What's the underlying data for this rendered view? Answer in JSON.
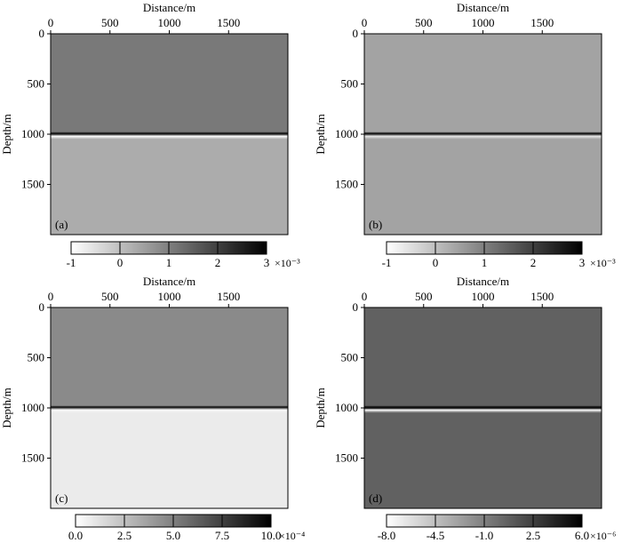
{
  "chart_data": [
    {
      "type": "heatmap",
      "panel_label": "(a)",
      "xlabel": "Distance/m",
      "ylabel": "Depth/m",
      "xlim": [
        0,
        2000
      ],
      "ylim": [
        0,
        2000
      ],
      "xticks": [
        "0",
        "500",
        "1000",
        "1500"
      ],
      "yticks": [
        "0",
        "500",
        "1000",
        "1500"
      ],
      "reflector_depth": 1000,
      "colorbar": {
        "ticks": [
          "-1",
          "0",
          "1",
          "2",
          "3"
        ],
        "values": [
          -1,
          0,
          1,
          2,
          3
        ],
        "range": [
          -1,
          3
        ],
        "exponent": "×10⁻³"
      },
      "field": {
        "upper_value": 1.1,
        "lower_value": 0.3,
        "peak_value": 3.0,
        "trough_value": -1.0
      }
    },
    {
      "type": "heatmap",
      "panel_label": "(b)",
      "xlabel": "Distance/m",
      "ylabel": "Depth/m",
      "xlim": [
        0,
        2000
      ],
      "ylim": [
        0,
        2000
      ],
      "xticks": [
        "0",
        "500",
        "1000",
        "1500"
      ],
      "yticks": [
        "0",
        "500",
        "1000",
        "1500"
      ],
      "reflector_depth": 1000,
      "colorbar": {
        "ticks": [
          "-1",
          "0",
          "1",
          "2",
          "3"
        ],
        "values": [
          -1,
          0,
          1,
          2,
          3
        ],
        "range": [
          -1,
          3
        ],
        "exponent": "×10⁻³"
      },
      "field": {
        "upper_value": 0.45,
        "lower_value": 0.45,
        "peak_value": 3.0,
        "trough_value": -0.6
      }
    },
    {
      "type": "heatmap",
      "panel_label": "(c)",
      "xlabel": "Distance/m",
      "ylabel": "Depth/m",
      "xlim": [
        0,
        2000
      ],
      "ylim": [
        0,
        2000
      ],
      "xticks": [
        "0",
        "500",
        "1000",
        "1500"
      ],
      "yticks": [
        "0",
        "500",
        "1000",
        "1500"
      ],
      "reflector_depth": 1000,
      "colorbar": {
        "ticks": [
          "0.0",
          "2.5",
          "5.0",
          "7.5",
          "10.0"
        ],
        "values": [
          0,
          2.5,
          5,
          7.5,
          10
        ],
        "range": [
          0,
          10
        ],
        "exponent": "×10⁻⁴"
      },
      "field": {
        "upper_value": 4.6,
        "lower_value": 0.8,
        "peak_value": 10.0,
        "trough_value": 0.2
      }
    },
    {
      "type": "heatmap",
      "panel_label": "(d)",
      "xlabel": "Distance/m",
      "ylabel": "Depth/m",
      "xlim": [
        0,
        2000
      ],
      "ylim": [
        0,
        2000
      ],
      "xticks": [
        "0",
        "500",
        "1000",
        "1500"
      ],
      "yticks": [
        "0",
        "500",
        "1000",
        "1500"
      ],
      "reflector_depth": 1000,
      "colorbar": {
        "ticks": [
          "-8.0",
          "-4.5",
          "-1.0",
          "2.5",
          "6.0"
        ],
        "values": [
          -8,
          -4.5,
          -1,
          2.5,
          6
        ],
        "range": [
          -8,
          6
        ],
        "exponent": "×10⁻⁶"
      },
      "field": {
        "upper_value": 0.7,
        "lower_value": 0.7,
        "peak_value": 6.0,
        "trough_value": -8.0
      }
    }
  ]
}
